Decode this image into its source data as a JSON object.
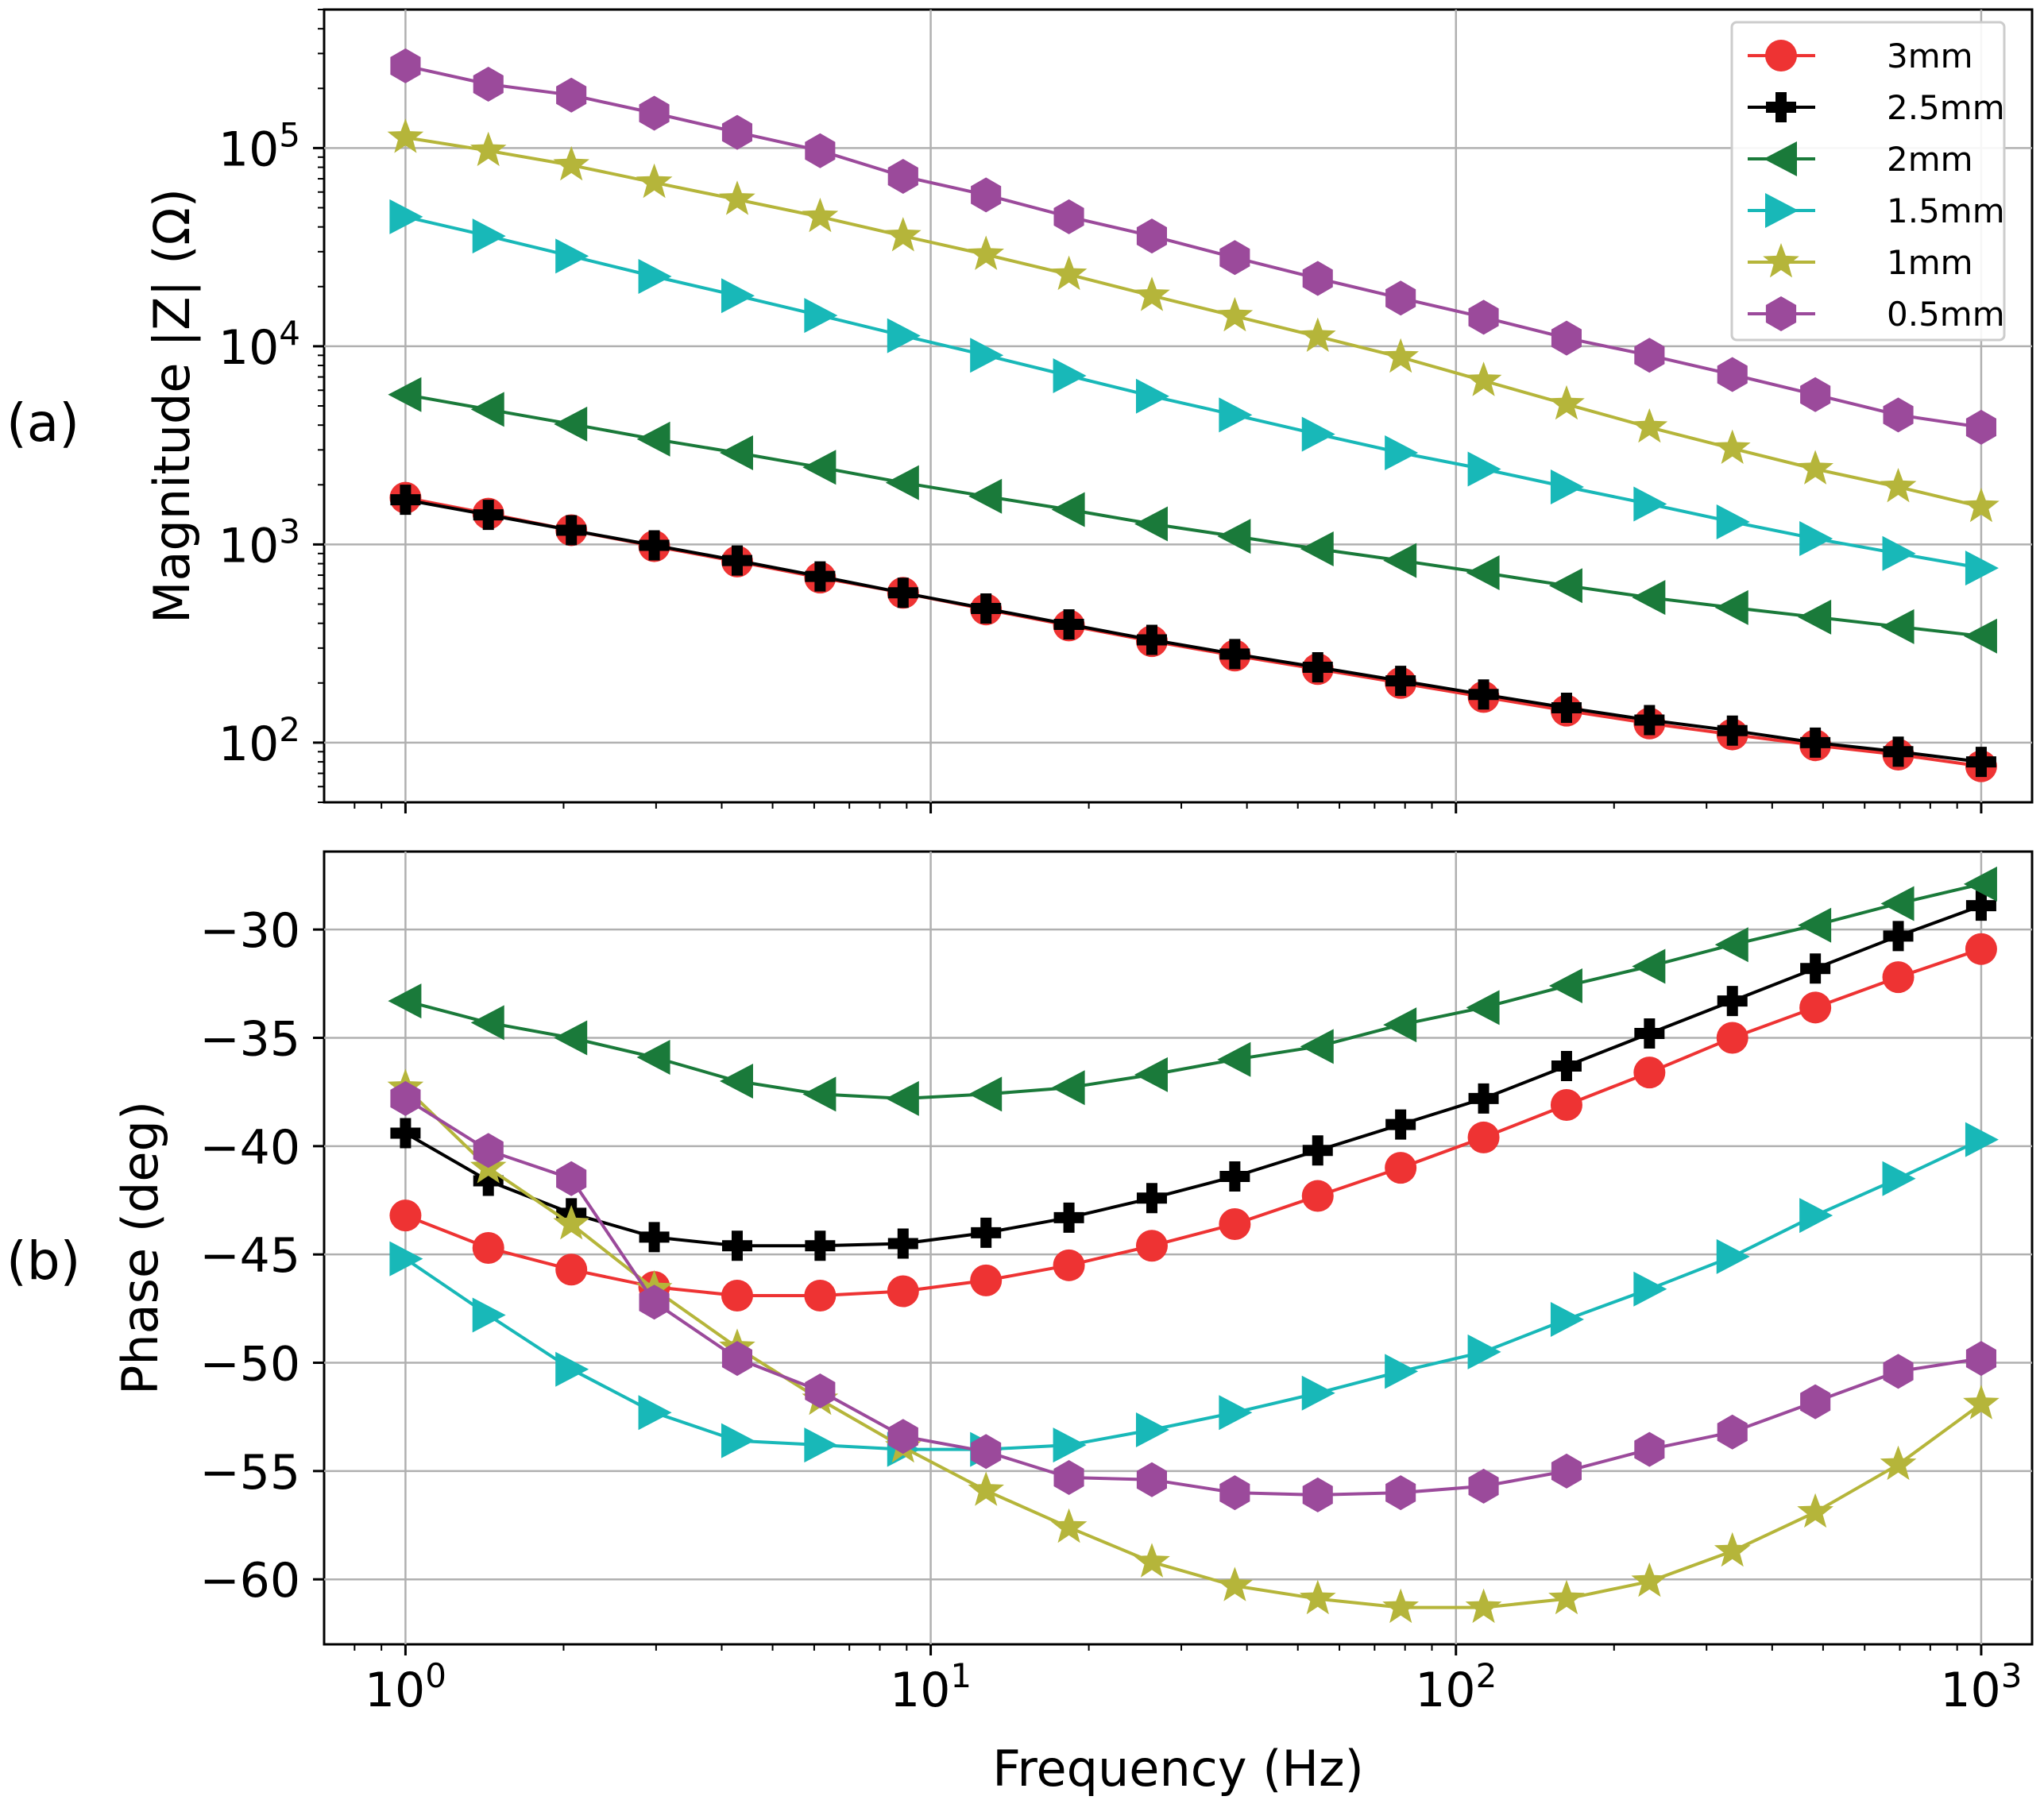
{
  "chart_data": [
    {
      "type": "line",
      "panel_label": "(a)",
      "ylabel": "Magnitude |Z| (Ω)",
      "xlabel": "",
      "xscale": "log",
      "yscale": "log",
      "xlim": [
        0.7,
        1250
      ],
      "ylim": [
        50,
        500000
      ],
      "grid": true,
      "x_ticks": [
        1,
        10,
        100,
        1000
      ],
      "y_ticks": [
        100,
        1000,
        10000,
        100000
      ],
      "y_tick_labels": [
        {
          "base": "10",
          "exp": "2"
        },
        {
          "base": "10",
          "exp": "3"
        },
        {
          "base": "10",
          "exp": "4"
        },
        {
          "base": "10",
          "exp": "5"
        }
      ],
      "legend": {
        "position": "top-right",
        "entries": [
          "3mm",
          "2.5mm",
          "2mm",
          "1.5mm",
          "1mm",
          "0.5mm"
        ]
      },
      "x": [
        1,
        1.438,
        2.069,
        2.976,
        4.281,
        6.158,
        8.859,
        12.743,
        18.33,
        26.367,
        37.927,
        54.556,
        78.476,
        112.884,
        162.378,
        233.572,
        335.982,
        483.293,
        695.193,
        1000
      ],
      "series": [
        {
          "name": "3mm",
          "color": "#ee3333",
          "marker": "circle",
          "values": [
            1720,
            1430,
            1180,
            980,
            820,
            680,
            570,
            470,
            390,
            325,
            275,
            235,
            200,
            170,
            145,
            125,
            110,
            97,
            87,
            76
          ]
        },
        {
          "name": "2.5mm",
          "color": "#000000",
          "marker": "plus",
          "values": [
            1680,
            1410,
            1180,
            990,
            830,
            690,
            570,
            475,
            395,
            330,
            280,
            240,
            205,
            175,
            150,
            130,
            115,
            100,
            90,
            80
          ]
        },
        {
          "name": "2mm",
          "color": "#1a7a3a",
          "marker": "triangle-left",
          "values": [
            5700,
            4800,
            4050,
            3400,
            2900,
            2450,
            2050,
            1750,
            1500,
            1270,
            1100,
            950,
            830,
            720,
            620,
            540,
            480,
            430,
            385,
            345
          ]
        },
        {
          "name": "1.5mm",
          "color": "#18b8b8",
          "marker": "triangle-right",
          "values": [
            45000,
            36000,
            28500,
            22500,
            18000,
            14300,
            11300,
            9000,
            7100,
            5600,
            4500,
            3600,
            2900,
            2400,
            1950,
            1600,
            1300,
            1070,
            900,
            760
          ]
        },
        {
          "name": "1mm",
          "color": "#b5b53a",
          "marker": "star",
          "values": [
            113000,
            97000,
            82000,
            67000,
            55000,
            45000,
            36000,
            29000,
            23000,
            18000,
            14200,
            11200,
            8800,
            6700,
            5100,
            3900,
            3050,
            2400,
            1950,
            1550
          ]
        },
        {
          "name": "0.5mm",
          "color": "#9b4a9b",
          "marker": "hexagon",
          "values": [
            260000,
            210000,
            185000,
            150000,
            120000,
            97000,
            72000,
            58000,
            45000,
            36000,
            28000,
            22000,
            17500,
            14000,
            11000,
            9000,
            7200,
            5700,
            4500,
            3900
          ]
        }
      ]
    },
    {
      "type": "line",
      "panel_label": "(b)",
      "ylabel": "Phase (deg)",
      "xlabel": "Frequency (Hz)",
      "xscale": "log",
      "yscale": "linear",
      "xlim": [
        0.7,
        1250
      ],
      "ylim": [
        -63,
        -26.4
      ],
      "grid": true,
      "x_ticks": [
        1,
        10,
        100,
        1000
      ],
      "x_tick_labels": [
        {
          "base": "10",
          "exp": "0"
        },
        {
          "base": "10",
          "exp": "1"
        },
        {
          "base": "10",
          "exp": "2"
        },
        {
          "base": "10",
          "exp": "3"
        }
      ],
      "y_ticks": [
        -30,
        -35,
        -40,
        -45,
        -50,
        -55,
        -60
      ],
      "y_tick_labels": [
        "−30",
        "−35",
        "−40",
        "−45",
        "−50",
        "−55",
        "−60"
      ],
      "x": [
        1,
        1.438,
        2.069,
        2.976,
        4.281,
        6.158,
        8.859,
        12.743,
        18.33,
        26.367,
        37.927,
        54.556,
        78.476,
        112.884,
        162.378,
        233.572,
        335.982,
        483.293,
        695.193,
        1000
      ],
      "series": [
        {
          "name": "3mm",
          "color": "#ee3333",
          "marker": "circle",
          "values": [
            -43.2,
            -44.7,
            -45.7,
            -46.5,
            -46.9,
            -46.9,
            -46.7,
            -46.2,
            -45.5,
            -44.6,
            -43.6,
            -42.3,
            -41.0,
            -39.6,
            -38.1,
            -36.6,
            -35.0,
            -33.6,
            -32.2,
            -30.9
          ]
        },
        {
          "name": "2.5mm",
          "color": "#000000",
          "marker": "plus",
          "values": [
            -39.4,
            -41.6,
            -43.1,
            -44.2,
            -44.6,
            -44.6,
            -44.5,
            -44.0,
            -43.3,
            -42.4,
            -41.4,
            -40.2,
            -39.0,
            -37.8,
            -36.3,
            -34.8,
            -33.3,
            -31.8,
            -30.3,
            -28.9
          ]
        },
        {
          "name": "2mm",
          "color": "#1a7a3a",
          "marker": "triangle-left",
          "values": [
            -33.3,
            -34.3,
            -35.0,
            -35.9,
            -37.0,
            -37.6,
            -37.8,
            -37.6,
            -37.3,
            -36.7,
            -36.0,
            -35.4,
            -34.4,
            -33.6,
            -32.6,
            -31.7,
            -30.7,
            -29.8,
            -28.8,
            -27.9
          ]
        },
        {
          "name": "1.5mm",
          "color": "#18b8b8",
          "marker": "triangle-right",
          "values": [
            -45.2,
            -47.8,
            -50.3,
            -52.3,
            -53.6,
            -53.8,
            -54.0,
            -54.0,
            -53.8,
            -53.1,
            -52.3,
            -51.4,
            -50.4,
            -49.5,
            -48.0,
            -46.6,
            -45.1,
            -43.2,
            -41.5,
            -39.7
          ]
        },
        {
          "name": "1mm",
          "color": "#b5b53a",
          "marker": "star",
          "values": [
            -37.3,
            -41.0,
            -43.6,
            -46.6,
            -49.3,
            -51.7,
            -53.9,
            -55.9,
            -57.6,
            -59.2,
            -60.3,
            -60.9,
            -61.3,
            -61.3,
            -60.9,
            -60.1,
            -58.7,
            -56.9,
            -54.7,
            -51.9
          ]
        },
        {
          "name": "0.5mm",
          "color": "#9b4a9b",
          "marker": "hexagon",
          "values": [
            -37.8,
            -40.2,
            -41.5,
            -47.2,
            -49.8,
            -51.3,
            -53.4,
            -54.1,
            -55.3,
            -55.4,
            -56.0,
            -56.1,
            -56.0,
            -55.7,
            -55.0,
            -54.0,
            -53.2,
            -51.8,
            -50.4,
            -49.8
          ]
        }
      ]
    }
  ]
}
